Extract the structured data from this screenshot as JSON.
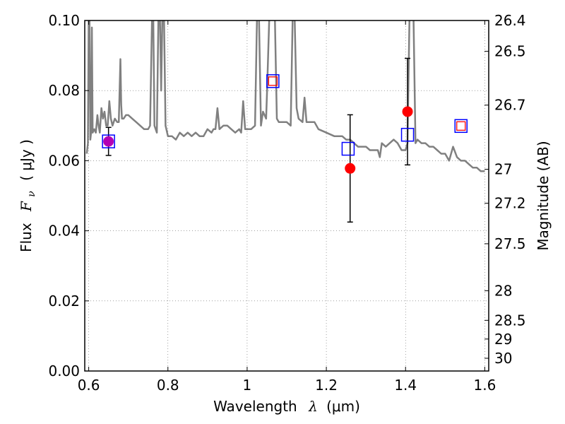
{
  "chart_data": {
    "type": "line",
    "xlabel": "Wavelength",
    "xlabel_symbol": "λ",
    "xlabel_unit": "(μm)",
    "ylabel": "Flux",
    "ylabel_symbol": "F",
    "ylabel_subscript": "ν",
    "ylabel_unit": "( μJy )",
    "y2label": "Magnitude (AB)",
    "xlim": [
      0.59,
      1.61
    ],
    "ylim": [
      0.0,
      0.1
    ],
    "grid": true,
    "x_ticks": [
      0.6,
      0.8,
      1.0,
      1.2,
      1.4,
      1.6
    ],
    "x_tick_labels": [
      "0.6",
      "0.8",
      "1",
      "1.2",
      "1.4",
      "1.6"
    ],
    "y_ticks": [
      0.0,
      0.02,
      0.04,
      0.06,
      0.08,
      0.1
    ],
    "y_tick_labels": [
      "0.00",
      "0.02",
      "0.04",
      "0.06",
      "0.08",
      "0.10"
    ],
    "y2_ticks": [
      26.4,
      26.5,
      26.7,
      27,
      27.2,
      27.5,
      28,
      28.5,
      29,
      30
    ],
    "y2_tick_labels": [
      "26.4",
      "26.5",
      "26.7",
      "27",
      "27.2",
      "27.5",
      "28",
      "28.5",
      "29",
      "30"
    ],
    "series": [
      {
        "kind": "spectrum",
        "color": "#808080",
        "x": [
          0.595,
          0.598,
          0.6,
          0.602,
          0.604,
          0.606,
          0.608,
          0.61,
          0.614,
          0.618,
          0.622,
          0.625,
          0.628,
          0.632,
          0.636,
          0.64,
          0.644,
          0.648,
          0.652,
          0.656,
          0.66,
          0.666,
          0.672,
          0.676,
          0.68,
          0.682,
          0.684,
          0.688,
          0.694,
          0.7,
          0.71,
          0.72,
          0.73,
          0.74,
          0.75,
          0.755,
          0.76,
          0.763,
          0.766,
          0.772,
          0.776,
          0.78,
          0.783,
          0.786,
          0.79,
          0.794,
          0.8,
          0.81,
          0.82,
          0.83,
          0.84,
          0.85,
          0.86,
          0.87,
          0.88,
          0.89,
          0.9,
          0.91,
          0.915,
          0.92,
          0.925,
          0.93,
          0.94,
          0.95,
          0.96,
          0.97,
          0.98,
          0.985,
          0.99,
          0.995,
          1.0,
          1.01,
          1.02,
          1.025,
          1.03,
          1.035,
          1.04,
          1.048,
          1.05,
          1.056,
          1.06,
          1.07,
          1.075,
          1.08,
          1.085,
          1.09,
          1.095,
          1.1,
          1.11,
          1.115,
          1.12,
          1.125,
          1.13,
          1.14,
          1.145,
          1.15,
          1.16,
          1.17,
          1.18,
          1.2,
          1.22,
          1.24,
          1.25,
          1.26,
          1.27,
          1.28,
          1.29,
          1.3,
          1.31,
          1.32,
          1.33,
          1.335,
          1.34,
          1.35,
          1.36,
          1.37,
          1.38,
          1.39,
          1.4,
          1.405,
          1.41,
          1.415,
          1.42,
          1.425,
          1.43,
          1.44,
          1.45,
          1.46,
          1.47,
          1.48,
          1.49,
          1.5,
          1.51,
          1.52,
          1.53,
          1.54,
          1.55,
          1.56,
          1.57,
          1.58,
          1.59,
          1.6
        ],
        "y": [
          0.062,
          0.065,
          0.101,
          0.101,
          0.066,
          0.068,
          0.098,
          0.068,
          0.069,
          0.068,
          0.073,
          0.07,
          0.068,
          0.075,
          0.072,
          0.074,
          0.07,
          0.07,
          0.077,
          0.072,
          0.07,
          0.072,
          0.071,
          0.071,
          0.089,
          0.076,
          0.072,
          0.072,
          0.073,
          0.073,
          0.072,
          0.071,
          0.07,
          0.069,
          0.069,
          0.07,
          0.101,
          0.101,
          0.07,
          0.068,
          0.101,
          0.101,
          0.08,
          0.101,
          0.101,
          0.07,
          0.067,
          0.067,
          0.066,
          0.068,
          0.067,
          0.068,
          0.067,
          0.068,
          0.067,
          0.067,
          0.069,
          0.068,
          0.069,
          0.069,
          0.075,
          0.069,
          0.07,
          0.07,
          0.069,
          0.068,
          0.069,
          0.068,
          0.077,
          0.069,
          0.069,
          0.069,
          0.07,
          0.101,
          0.101,
          0.07,
          0.074,
          0.072,
          0.079,
          0.101,
          0.101,
          0.101,
          0.072,
          0.071,
          0.071,
          0.071,
          0.071,
          0.071,
          0.07,
          0.101,
          0.101,
          0.075,
          0.072,
          0.071,
          0.078,
          0.071,
          0.071,
          0.071,
          0.069,
          0.068,
          0.067,
          0.067,
          0.066,
          0.066,
          0.065,
          0.064,
          0.064,
          0.064,
          0.063,
          0.063,
          0.063,
          0.061,
          0.065,
          0.064,
          0.065,
          0.066,
          0.065,
          0.063,
          0.063,
          0.065,
          0.101,
          0.101,
          0.101,
          0.065,
          0.066,
          0.065,
          0.065,
          0.064,
          0.064,
          0.063,
          0.062,
          0.062,
          0.06,
          0.064,
          0.061,
          0.06,
          0.06,
          0.059,
          0.058,
          0.058,
          0.057,
          0.057
        ]
      },
      {
        "kind": "observed",
        "marker": "circle",
        "color": "#ff0000",
        "points": [
          {
            "x": 0.65,
            "y": 0.0655,
            "err": 0.004,
            "fill": "#b400b4"
          },
          {
            "x": 1.26,
            "y": 0.0578,
            "err": 0.0153,
            "fill": "#ff0000"
          },
          {
            "x": 1.405,
            "y": 0.074,
            "err": 0.0152,
            "fill": "#ff0000"
          }
        ]
      },
      {
        "kind": "model_red",
        "marker": "square",
        "color": "#ff0000",
        "points": [
          {
            "x": 1.065,
            "y": 0.0827
          },
          {
            "x": 1.54,
            "y": 0.0699
          }
        ]
      },
      {
        "kind": "model_blue",
        "marker": "square",
        "color": "#0000ff",
        "points": [
          {
            "x": 0.65,
            "y": 0.0655
          },
          {
            "x": 1.065,
            "y": 0.0827
          },
          {
            "x": 1.255,
            "y": 0.0634
          },
          {
            "x": 1.405,
            "y": 0.0674
          },
          {
            "x": 1.54,
            "y": 0.0699
          }
        ]
      }
    ]
  }
}
